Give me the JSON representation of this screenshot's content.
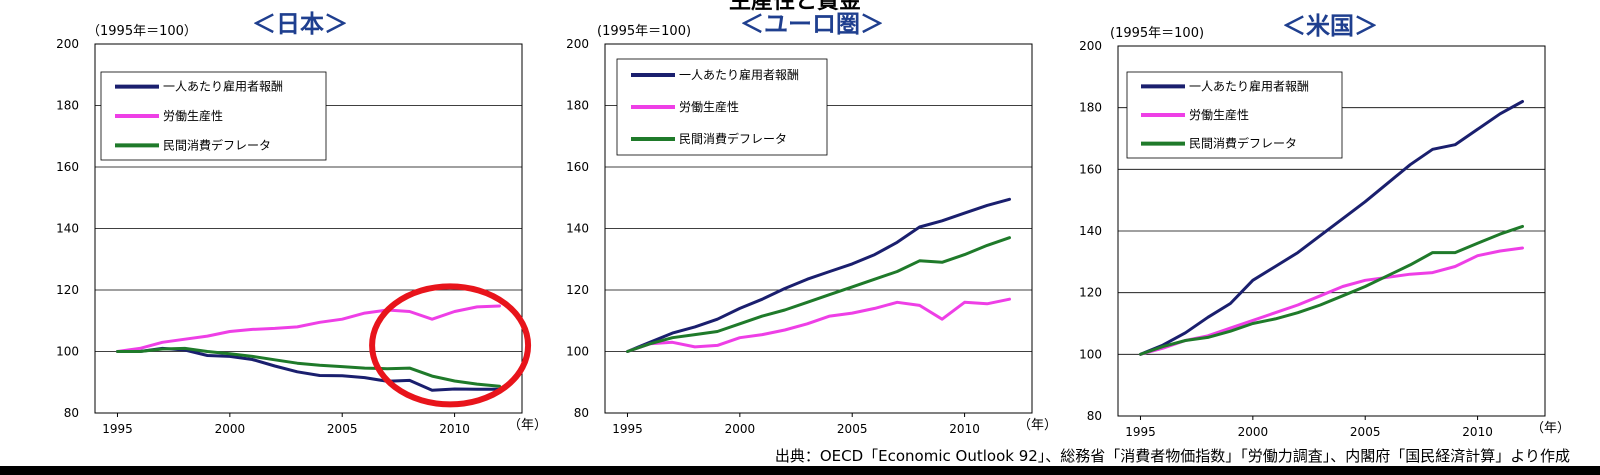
{
  "header": {
    "main_title": "生産性と賃金"
  },
  "source_text": "出典：OECD「Economic Outlook 92」、総務省「消費者物価指数」「労働力調査」、内閣府「国民経済計算」より作成",
  "colors": {
    "compensation": "#1a1f6e",
    "productivity": "#ee3fe6",
    "deflator": "#1f7a2a",
    "highlight": "#e8141b"
  },
  "chart_data": [
    {
      "type": "line",
      "title": "＜日本＞",
      "unit_label": "（1995年＝100）",
      "xlabel": "（年）",
      "ylim": [
        80,
        200
      ],
      "xlim": [
        1994,
        2013
      ],
      "yticks": [
        "80",
        "100",
        "120",
        "140",
        "160",
        "180",
        "200"
      ],
      "xticks": [
        "1995",
        "2000",
        "2005",
        "2010"
      ],
      "x": [
        1995,
        1996,
        1997,
        1998,
        1999,
        2000,
        2001,
        2002,
        2003,
        2004,
        2005,
        2006,
        2007,
        2008,
        2009,
        2010,
        2011,
        2012
      ],
      "series": [
        {
          "name": "一人あたり雇用者報酬",
          "key": "compensation",
          "values": [
            100,
            100,
            101,
            100.5,
            98.7,
            98.4,
            97.4,
            95.3,
            93.4,
            92.2,
            92.1,
            91.5,
            90.3,
            90.6,
            87.4,
            87.8,
            87.7,
            87.7
          ]
        },
        {
          "name": "労働生産性",
          "key": "productivity",
          "values": [
            100,
            101,
            103,
            104,
            105,
            106.5,
            107.2,
            107.5,
            108,
            109.5,
            110.5,
            112.5,
            113.5,
            113,
            110.5,
            113,
            114.5,
            114.8
          ]
        },
        {
          "name": "民間消費デフレータ",
          "key": "deflator",
          "values": [
            100,
            100,
            100.8,
            101,
            100,
            99.3,
            98.4,
            97.3,
            96.2,
            95.5,
            95.1,
            94.6,
            94.4,
            94.6,
            92,
            90.4,
            89.4,
            88.7
          ]
        }
      ],
      "annotation": "highlight-circle-2007-2012"
    },
    {
      "type": "line",
      "title": "＜ユーロ圏＞",
      "unit_label": "(1995年＝100)",
      "xlabel": "（年）",
      "ylim": [
        80,
        200
      ],
      "xlim": [
        1994,
        2013
      ],
      "yticks": [
        "80",
        "100",
        "120",
        "140",
        "160",
        "180",
        "200"
      ],
      "xticks": [
        "1995",
        "2000",
        "2005",
        "2010"
      ],
      "x": [
        1995,
        1996,
        1997,
        1998,
        1999,
        2000,
        2001,
        2002,
        2003,
        2004,
        2005,
        2006,
        2007,
        2008,
        2009,
        2010,
        2011,
        2012
      ],
      "series": [
        {
          "name": "一人あたり雇用者報酬",
          "key": "compensation",
          "values": [
            100,
            103,
            106,
            108,
            110.5,
            114,
            117,
            120.5,
            123.5,
            126,
            128.5,
            131.5,
            135.5,
            140.5,
            142.5,
            145,
            147.5,
            149.5
          ]
        },
        {
          "name": "労働生産性",
          "key": "productivity",
          "values": [
            100,
            102.5,
            103,
            101.5,
            102,
            104.5,
            105.5,
            107,
            109,
            111.5,
            112.5,
            114,
            116,
            115,
            110.5,
            116,
            115.5,
            117
          ]
        },
        {
          "name": "民間消費デフレータ",
          "key": "deflator",
          "values": [
            100,
            102.5,
            104.5,
            105.5,
            106.5,
            109,
            111.5,
            113.5,
            116,
            118.5,
            121,
            123.5,
            126,
            129.5,
            129,
            131.5,
            134.5,
            137
          ]
        }
      ]
    },
    {
      "type": "line",
      "title": "＜米国＞",
      "unit_label": "(1995年＝100)",
      "xlabel": "（年）",
      "ylim": [
        80,
        200
      ],
      "xlim": [
        1994,
        2013
      ],
      "yticks": [
        "80",
        "100",
        "120",
        "140",
        "160",
        "180",
        "200"
      ],
      "xticks": [
        "1995",
        "2000",
        "2005",
        "2010"
      ],
      "x": [
        1995,
        1996,
        1997,
        1998,
        1999,
        2000,
        2001,
        2002,
        2003,
        2004,
        2005,
        2006,
        2007,
        2008,
        2009,
        2010,
        2011,
        2012
      ],
      "series": [
        {
          "name": "一人あたり雇用者報酬",
          "key": "compensation",
          "values": [
            100,
            103,
            107,
            112,
            116.5,
            124,
            128.5,
            133,
            138.5,
            144,
            149.5,
            155.5,
            161.5,
            166.5,
            168,
            173,
            178,
            182
          ]
        },
        {
          "name": "労働生産性",
          "key": "productivity",
          "values": [
            100,
            102,
            104.5,
            106,
            108.5,
            111,
            113.5,
            116,
            119,
            122,
            124,
            125,
            126,
            126.5,
            128.5,
            132,
            133.5,
            134.5
          ]
        },
        {
          "name": "民間消費デフレータ",
          "key": "deflator",
          "values": [
            100,
            102.5,
            104.5,
            105.5,
            107.5,
            110,
            111.5,
            113.5,
            116,
            119,
            122,
            125.5,
            129,
            133,
            133,
            136,
            139,
            141.5
          ]
        }
      ]
    }
  ]
}
